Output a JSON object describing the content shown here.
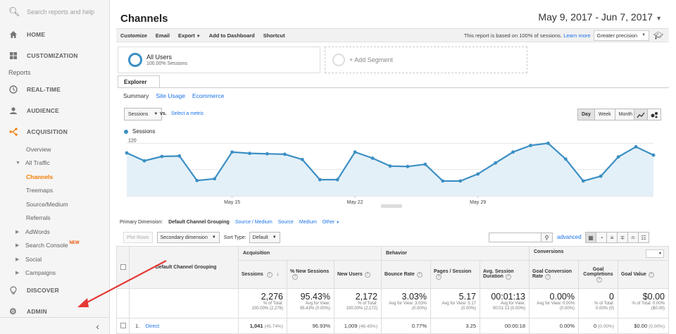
{
  "sidebar": {
    "search_placeholder": "Search reports and help",
    "home": "HOME",
    "customization": "CUSTOMIZATION",
    "reports_label": "Reports",
    "realtime": "REAL-TIME",
    "audience": "AUDIENCE",
    "acquisition": "ACQUISITION",
    "overview": "Overview",
    "all_traffic": "All Traffic",
    "channels": "Channels",
    "treemaps": "Treemaps",
    "source_medium": "Source/Medium",
    "referrals": "Referrals",
    "adwords": "AdWords",
    "search_console": "Search Console",
    "new_badge": "NEW",
    "social": "Social",
    "campaigns": "Campaigns",
    "discover": "DISCOVER",
    "admin": "ADMIN",
    "collapse_icon": "chevron-left-icon"
  },
  "header": {
    "title": "Channels",
    "date_range": "May 9, 2017 - Jun 7, 2017"
  },
  "toolbar": {
    "customize": "Customize",
    "email": "Email",
    "export": "Export",
    "add_dashboard": "Add to Dashboard",
    "shortcut": "Shortcut",
    "note": "This report is based on 100% of sessions.",
    "learn_more": "Learn more",
    "precision": "Greater precision"
  },
  "segments": {
    "name": "All Users",
    "sub": "100.00% Sessions",
    "add": "+ Add Segment"
  },
  "explorer": {
    "tab": "Explorer",
    "summary": "Summary",
    "site_usage": "Site Usage",
    "ecommerce": "Ecommerce",
    "metric": "Sessions",
    "vs": "vs.",
    "select_metric": "Select a metric",
    "day": "Day",
    "week": "Week",
    "month": "Month",
    "legend": "Sessions"
  },
  "chart_data": {
    "type": "area",
    "series": [
      {
        "name": "Sessions",
        "values": [
          98,
          80,
          90,
          91,
          35,
          39,
          100,
          97,
          96,
          95,
          83,
          37,
          37,
          100,
          86,
          68,
          67,
          72,
          34,
          34,
          50,
          75,
          100,
          115,
          120,
          84,
          34,
          45,
          89,
          112,
          93
        ]
      }
    ],
    "x_tick_labels": [
      "May 15",
      "May 22",
      "May 29"
    ],
    "x_tick_index": [
      6,
      13,
      20
    ],
    "y_ticks": [
      60,
      120
    ],
    "ylim": [
      0,
      135
    ],
    "color": "#3b8fc4"
  },
  "table_controls": {
    "primary_dimension_label": "Primary Dimension:",
    "primary_dimension": "Default Channel Grouping",
    "source_medium": "Source / Medium",
    "source": "Source",
    "medium": "Medium",
    "other": "Other",
    "plot_rows": "Plot Rows",
    "secondary_dimension": "Secondary dimension",
    "sort_type_label": "Sort Type:",
    "sort_type": "Default",
    "advanced": "advanced"
  },
  "table": {
    "group_acquisition": "Acquisition",
    "group_behavior": "Behavior",
    "group_conversions": "Conversions",
    "dim_header": "Default Channel Grouping",
    "columns": [
      "Sessions",
      "% New Sessions",
      "New Users",
      "Bounce Rate",
      "Pages / Session",
      "Avg. Session Duration",
      "Goal Conversion Rate",
      "Goal Completions",
      "Goal Value"
    ],
    "totals": [
      {
        "big": "2,276",
        "s1": "% of Total:",
        "s2": "100.00% (2,276)"
      },
      {
        "big": "95.43%",
        "s1": "Avg for View:",
        "s2": "95.43% (0.00%)"
      },
      {
        "big": "2,172",
        "s1": "% of Total:",
        "s2": "100.00% (2,172)"
      },
      {
        "big": "3.03%",
        "s1": "Avg for View: 3.03%",
        "s2": "(0.00%)"
      },
      {
        "big": "5.17",
        "s1": "Avg for View: 5.17",
        "s2": "(0.00%)"
      },
      {
        "big": "00:01:13",
        "s1": "Avg for View:",
        "s2": "00:01:13 (0.00%)"
      },
      {
        "big": "0.00%",
        "s1": "Avg for View: 0.00%",
        "s2": "(0.00%)"
      },
      {
        "big": "0",
        "s1": "% of Total:",
        "s2": "0.00% (0)"
      },
      {
        "big": "$0.00",
        "s1": "% of Total: 0.00%",
        "s2": "($0.00)"
      }
    ],
    "row1": {
      "index": "1.",
      "name": "Direct",
      "sessions": "1,041",
      "sessions_pct": "(45.74%)",
      "new_sessions": "96.93%",
      "new_users": "1,009",
      "new_users_pct": "(46.45%)",
      "bounce": "0.77%",
      "pages": "3.25",
      "duration": "00:00:18",
      "conv_rate": "0.00%",
      "completions": "0",
      "completions_pct": "(0.00%)",
      "value": "$0.00",
      "value_pct": "(0.00%)"
    }
  }
}
